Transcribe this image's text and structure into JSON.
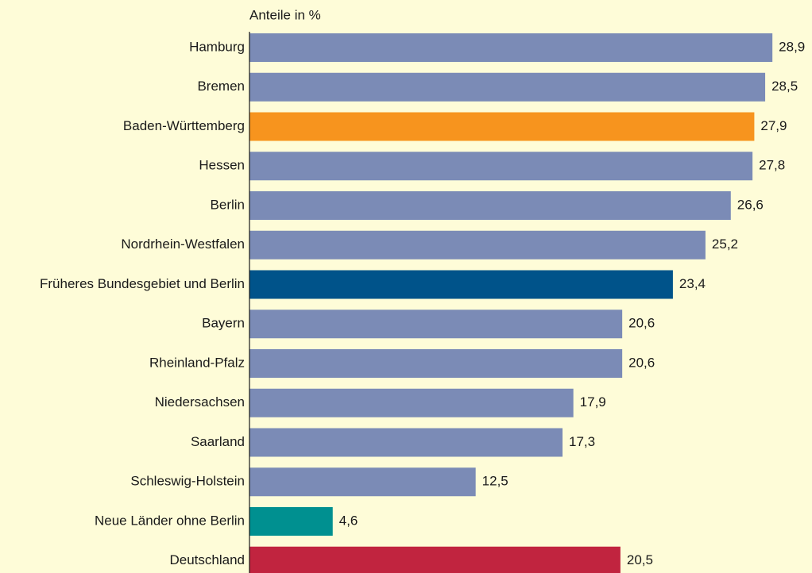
{
  "chart_data": {
    "type": "hbar",
    "x_label": "Anteile in %",
    "categories": [
      "Hamburg",
      "Bremen",
      "Baden-Württemberg",
      "Hessen",
      "Berlin",
      "Nordrhein-Westfalen",
      "Früheres Bundesgebiet und Berlin",
      "Bayern",
      "Rheinland-Pfalz",
      "Niedersachsen",
      "Saarland",
      "Schleswig-Holstein",
      "Neue Länder ohne Berlin",
      "Deutschland"
    ],
    "values": [
      28.9,
      28.5,
      27.9,
      27.8,
      26.6,
      25.2,
      23.4,
      20.6,
      20.6,
      17.9,
      17.3,
      12.5,
      4.6,
      20.5
    ],
    "value_labels": [
      "28,9",
      "28,5",
      "27,9",
      "27,8",
      "26,6",
      "25,2",
      "23,4",
      "20,6",
      "20,6",
      "17,9",
      "17,3",
      "12,5",
      "4,6",
      "20,5"
    ],
    "colors": [
      "#7b8bb6",
      "#7b8bb6",
      "#f7941e",
      "#7b8bb6",
      "#7b8bb6",
      "#7b8bb6",
      "#00538a",
      "#7b8bb6",
      "#7b8bb6",
      "#7b8bb6",
      "#7b8bb6",
      "#7b8bb6",
      "#009090",
      "#c1243f"
    ],
    "xlim": [
      0,
      31
    ]
  }
}
